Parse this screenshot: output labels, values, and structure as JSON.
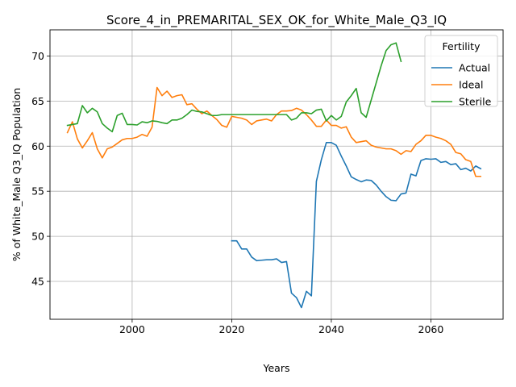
{
  "chart_data": {
    "type": "line",
    "title": "Score_4_in_PREMARITAL_SEX_OK_for_White_Male_Q3_IQ",
    "xlabel": "Years",
    "ylabel": "% of White_Male Q3_IQ Population",
    "xlim": [
      1983.5,
      2074.5
    ],
    "ylim": [
      40.8,
      72.9
    ],
    "x_ticks": [
      2000,
      2020,
      2040,
      2060
    ],
    "y_ticks": [
      45,
      50,
      55,
      60,
      65,
      70
    ],
    "grid": true,
    "legend": {
      "title": "Fertility",
      "position": "top-right"
    },
    "series": [
      {
        "name": "Actual",
        "color": "#1f77b4",
        "x": [
          2020,
          2021,
          2022,
          2023,
          2024,
          2025,
          2026,
          2027,
          2028,
          2029,
          2030,
          2031,
          2032,
          2033,
          2034,
          2035,
          2036,
          2037,
          2038,
          2039,
          2040,
          2041,
          2042,
          2043,
          2044,
          2045,
          2046,
          2047,
          2048,
          2049,
          2050,
          2051,
          2052,
          2053,
          2054,
          2055,
          2056,
          2057,
          2058,
          2059,
          2060,
          2061,
          2062,
          2063,
          2064,
          2065,
          2066,
          2067,
          2068,
          2069,
          2070
        ],
        "values": [
          49.5,
          49.5,
          48.6,
          48.6,
          47.7,
          47.3,
          47.35,
          47.4,
          47.4,
          47.5,
          47.1,
          47.2,
          43.7,
          43.2,
          42.1,
          43.9,
          43.4,
          56.1,
          58.5,
          60.4,
          60.4,
          60.1,
          58.9,
          57.8,
          56.6,
          56.3,
          56.05,
          56.25,
          56.2,
          55.7,
          55.0,
          54.4,
          54.0,
          53.95,
          54.7,
          54.8,
          56.9,
          56.7,
          58.4,
          58.6,
          58.55,
          58.6,
          58.2,
          58.3,
          57.95,
          58.05,
          57.4,
          57.55,
          57.25,
          57.8,
          57.5
        ]
      },
      {
        "name": "Ideal",
        "color": "#ff7f0e",
        "x": [
          1987,
          1988,
          1989,
          1990,
          1991,
          1992,
          1993,
          1994,
          1995,
          1996,
          1997,
          1998,
          1999,
          2000,
          2001,
          2002,
          2003,
          2004,
          2005,
          2006,
          2007,
          2008,
          2009,
          2010,
          2011,
          2012,
          2013,
          2014,
          2015,
          2016,
          2017,
          2018,
          2019,
          2020,
          2021,
          2022,
          2023,
          2024,
          2025,
          2026,
          2027,
          2028,
          2029,
          2030,
          2031,
          2032,
          2033,
          2034,
          2035,
          2036,
          2037,
          2038,
          2039,
          2040,
          2041,
          2042,
          2043,
          2044,
          2045,
          2046,
          2047,
          2048,
          2049,
          2050,
          2051,
          2052,
          2053,
          2054,
          2055,
          2056,
          2057,
          2058,
          2059,
          2060,
          2061,
          2062,
          2063,
          2064,
          2065,
          2066,
          2067,
          2068,
          2069,
          2070
        ],
        "values": [
          61.5,
          62.7,
          60.8,
          59.8,
          60.6,
          61.5,
          59.7,
          58.7,
          59.7,
          59.9,
          60.3,
          60.7,
          60.85,
          60.85,
          61.0,
          61.3,
          61.1,
          62.1,
          66.5,
          65.6,
          66.1,
          65.4,
          65.6,
          65.7,
          64.6,
          64.7,
          64.1,
          63.6,
          63.9,
          63.4,
          62.95,
          62.3,
          62.1,
          63.3,
          63.2,
          63.1,
          62.9,
          62.4,
          62.8,
          62.9,
          63.0,
          62.8,
          63.5,
          63.9,
          63.9,
          63.95,
          64.2,
          64.0,
          63.5,
          62.9,
          62.2,
          62.2,
          62.9,
          62.3,
          62.3,
          62.0,
          62.15,
          61.0,
          60.4,
          60.5,
          60.6,
          60.1,
          59.9,
          59.8,
          59.7,
          59.7,
          59.5,
          59.1,
          59.5,
          59.4,
          60.2,
          60.6,
          61.2,
          61.2,
          61.0,
          60.85,
          60.6,
          60.2,
          59.3,
          59.15,
          58.5,
          58.3,
          56.65,
          56.65
        ]
      },
      {
        "name": "Sterile",
        "color": "#2ca02c",
        "x": [
          1987,
          1988,
          1989,
          1990,
          1991,
          1992,
          1993,
          1994,
          1995,
          1996,
          1997,
          1998,
          1999,
          2000,
          2001,
          2002,
          2003,
          2004,
          2005,
          2006,
          2007,
          2008,
          2009,
          2010,
          2011,
          2012,
          2013,
          2014,
          2015,
          2016,
          2017,
          2018,
          2019,
          2020,
          2021,
          2022,
          2023,
          2024,
          2025,
          2026,
          2027,
          2028,
          2029,
          2030,
          2031,
          2032,
          2033,
          2034,
          2035,
          2036,
          2037,
          2038,
          2039,
          2040,
          2041,
          2042,
          2043,
          2044,
          2045,
          2046,
          2047,
          2048,
          2049,
          2050,
          2051,
          2052,
          2053,
          2054
        ],
        "values": [
          62.3,
          62.4,
          62.5,
          64.5,
          63.7,
          64.2,
          63.8,
          62.5,
          62.0,
          61.6,
          63.4,
          63.65,
          62.4,
          62.4,
          62.35,
          62.7,
          62.6,
          62.8,
          62.75,
          62.6,
          62.5,
          62.9,
          62.9,
          63.1,
          63.5,
          64.0,
          63.85,
          63.8,
          63.6,
          63.4,
          63.4,
          63.5,
          63.5,
          63.5,
          63.5,
          63.5,
          63.5,
          63.5,
          63.5,
          63.5,
          63.5,
          63.5,
          63.5,
          63.5,
          63.5,
          62.9,
          63.1,
          63.7,
          63.7,
          63.6,
          64.0,
          64.1,
          62.8,
          63.4,
          62.9,
          63.3,
          64.9,
          65.6,
          66.4,
          63.7,
          63.2,
          65.1,
          67.0,
          68.9,
          70.6,
          71.25,
          71.45,
          69.4
        ]
      }
    ]
  }
}
